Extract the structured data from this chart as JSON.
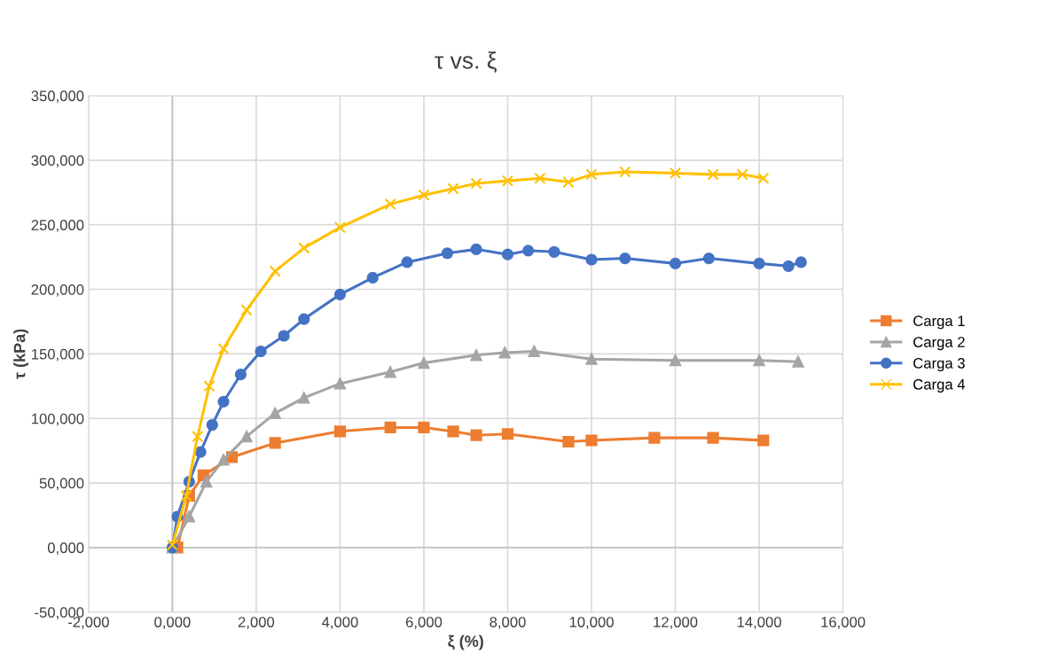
{
  "chart_data": {
    "type": "line",
    "title": "τ vs. ξ",
    "xlabel": "ξ (%)",
    "ylabel": "τ (kPa)",
    "xlim": [
      -2,
      16
    ],
    "ylim": [
      -50,
      350
    ],
    "xticks": [
      {
        "value": -2,
        "label": "-2,000"
      },
      {
        "value": 0,
        "label": "0,000"
      },
      {
        "value": 2,
        "label": "2,000"
      },
      {
        "value": 4,
        "label": "4,000"
      },
      {
        "value": 6,
        "label": "6,000"
      },
      {
        "value": 8,
        "label": "8,000"
      },
      {
        "value": 10,
        "label": "10,000"
      },
      {
        "value": 12,
        "label": "12,000"
      },
      {
        "value": 14,
        "label": "14,000"
      },
      {
        "value": 16,
        "label": "16,000"
      }
    ],
    "yticks": [
      {
        "value": -50,
        "label": "-50,000"
      },
      {
        "value": 0,
        "label": "0,000"
      },
      {
        "value": 50,
        "label": "50,000"
      },
      {
        "value": 100,
        "label": "100,000"
      },
      {
        "value": 150,
        "label": "150,000"
      },
      {
        "value": 200,
        "label": "200,000"
      },
      {
        "value": 250,
        "label": "250,000"
      },
      {
        "value": 300,
        "label": "300,000"
      },
      {
        "value": 350,
        "label": "350,000"
      }
    ],
    "grid": true,
    "legend": "right",
    "line_style": "solid",
    "series": [
      {
        "name": "Carga 1",
        "color": "#ed7d31",
        "marker": "square",
        "x": [
          0.12,
          0.4,
          0.74,
          1.42,
          2.45,
          4.0,
          5.2,
          6.0,
          6.7,
          7.25,
          8.0,
          9.45,
          10.0,
          11.5,
          12.9,
          14.1
        ],
        "values": [
          0,
          40,
          56,
          70,
          81,
          90,
          93,
          93,
          90,
          87,
          88,
          82,
          83,
          85,
          85,
          83
        ]
      },
      {
        "name": "Carga 2",
        "color": "#a5a5a5",
        "marker": "triangle",
        "x": [
          0,
          0.4,
          0.81,
          1.22,
          1.77,
          2.45,
          3.14,
          4.0,
          5.2,
          6.0,
          7.25,
          7.93,
          8.63,
          10.0,
          12.0,
          14.0,
          14.93
        ],
        "values": [
          0,
          24,
          51,
          68,
          86,
          104,
          116,
          127,
          136,
          143,
          149,
          151,
          152,
          146,
          145,
          145,
          144
        ]
      },
      {
        "name": "Carga 3",
        "color": "#4472c4",
        "marker": "circle",
        "x": [
          0,
          0.12,
          0.4,
          0.67,
          0.95,
          1.22,
          1.63,
          2.11,
          2.66,
          3.14,
          4.0,
          4.78,
          5.6,
          6.56,
          7.25,
          8.0,
          8.49,
          9.11,
          10.0,
          10.8,
          12.0,
          12.8,
          14.0,
          14.7,
          15.0
        ],
        "values": [
          0,
          24,
          51,
          74,
          95,
          113,
          134,
          152,
          164,
          177,
          196,
          209,
          221,
          228,
          231,
          227,
          230,
          229,
          223,
          224,
          220,
          224,
          220,
          218,
          221
        ]
      },
      {
        "name": "Carga 4",
        "color": "#ffc000",
        "marker": "cross",
        "x": [
          0,
          0.33,
          0.6,
          0.88,
          1.22,
          1.77,
          2.45,
          3.14,
          4.0,
          5.2,
          6.0,
          6.7,
          7.25,
          8.0,
          8.77,
          9.45,
          10.0,
          10.8,
          12.0,
          12.9,
          13.6,
          14.1
        ],
        "values": [
          2,
          40,
          86,
          125,
          154,
          184,
          214,
          232,
          248,
          266,
          273,
          278,
          282,
          284,
          286,
          283,
          289,
          291,
          290,
          289,
          289,
          286
        ]
      }
    ]
  }
}
